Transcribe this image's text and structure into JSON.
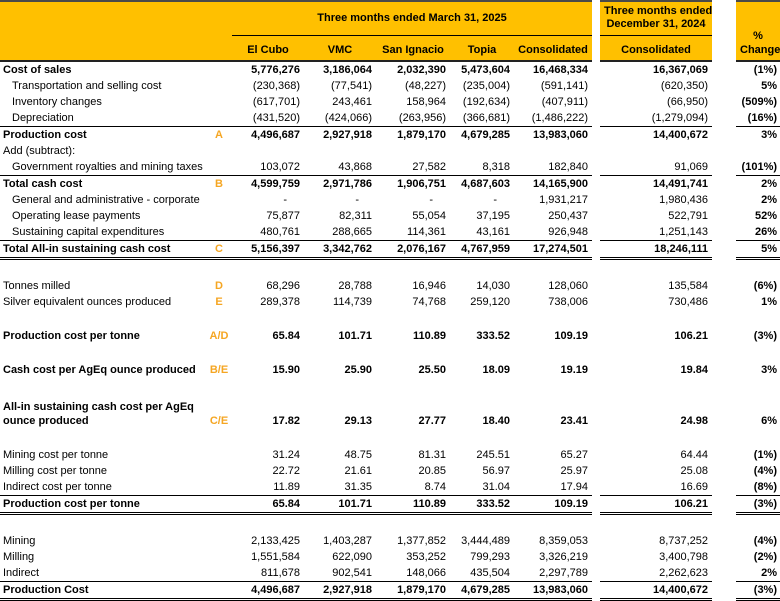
{
  "colors": {
    "header_background": "#FFC000",
    "reference_letter": "#F5A623",
    "text": "#000000",
    "rule_lines": "#000000"
  },
  "header": {
    "group_2025": "Three months ended March 31, 2025",
    "group_2024_line1": "Three months ended",
    "group_2024_line2": "December 31, 2024",
    "columns_2025": [
      "El Cubo",
      "VMC",
      "San Ignacio",
      "Topia",
      "Consolidated"
    ],
    "column_2024": "Consolidated",
    "pct_line1": "%",
    "pct_line2": "Change"
  },
  "rows": [
    {
      "label": "Cost of sales",
      "ref": "",
      "indent": false,
      "bold": true,
      "top": false,
      "dbl": false,
      "tall": false,
      "v25": [
        "5,776,276",
        "3,186,064",
        "2,032,390",
        "5,473,604",
        "16,468,334"
      ],
      "v24": "16,367,069",
      "pct": "(1%)"
    },
    {
      "label": "Transportation and selling cost",
      "ref": "",
      "indent": true,
      "bold": false,
      "top": false,
      "dbl": false,
      "tall": false,
      "v25": [
        "(230,368)",
        "(77,541)",
        "(48,227)",
        "(235,004)",
        "(591,141)"
      ],
      "v24": "(620,350)",
      "pct": "5%"
    },
    {
      "label": "Inventory changes",
      "ref": "",
      "indent": true,
      "bold": false,
      "top": false,
      "dbl": false,
      "tall": false,
      "v25": [
        "(617,701)",
        "243,461",
        "158,964",
        "(192,634)",
        "(407,911)"
      ],
      "v24": "(66,950)",
      "pct": "(509%)"
    },
    {
      "label": "Depreciation",
      "ref": "",
      "indent": true,
      "bold": false,
      "top": false,
      "dbl": false,
      "tall": false,
      "v25": [
        "(431,520)",
        "(424,066)",
        "(263,956)",
        "(366,681)",
        "(1,486,222)"
      ],
      "v24": "(1,279,094)",
      "pct": "(16%)"
    },
    {
      "label": "Production cost",
      "ref": "A",
      "indent": false,
      "bold": true,
      "top": true,
      "dbl": false,
      "tall": false,
      "v25": [
        "4,496,687",
        "2,927,918",
        "1,879,170",
        "4,679,285",
        "13,983,060"
      ],
      "v24": "14,400,672",
      "pct": "3%"
    },
    {
      "label": "Add (subtract):",
      "ref": "",
      "indent": false,
      "bold": false,
      "top": false,
      "dbl": false,
      "tall": false,
      "v25": [
        "",
        "",
        "",
        "",
        ""
      ],
      "v24": "",
      "pct": ""
    },
    {
      "label": "Government royalties and mining taxes",
      "ref": "",
      "indent": true,
      "bold": false,
      "top": false,
      "dbl": false,
      "tall": false,
      "v25": [
        "103,072",
        "43,868",
        "27,582",
        "8,318",
        "182,840"
      ],
      "v24": "91,069",
      "pct": "(101%)"
    },
    {
      "label": "Total cash cost",
      "ref": "B",
      "indent": false,
      "bold": true,
      "top": true,
      "dbl": false,
      "tall": false,
      "v25": [
        "4,599,759",
        "2,971,786",
        "1,906,751",
        "4,687,603",
        "14,165,900"
      ],
      "v24": "14,491,741",
      "pct": "2%"
    },
    {
      "label": "General and administrative - corporate",
      "ref": "",
      "indent": true,
      "bold": false,
      "top": false,
      "dbl": false,
      "tall": false,
      "v25": [
        "-",
        "-",
        "-",
        "-",
        "1,931,217"
      ],
      "v24": "1,980,436",
      "pct": "2%"
    },
    {
      "label": "Operating lease payments",
      "ref": "",
      "indent": true,
      "bold": false,
      "top": false,
      "dbl": false,
      "tall": false,
      "v25": [
        "75,877",
        "82,311",
        "55,054",
        "37,195",
        "250,437"
      ],
      "v24": "522,791",
      "pct": "52%"
    },
    {
      "label": "Sustaining capital expenditures",
      "ref": "",
      "indent": true,
      "bold": false,
      "top": false,
      "dbl": false,
      "tall": false,
      "v25": [
        "480,761",
        "288,665",
        "114,361",
        "43,161",
        "926,948"
      ],
      "v24": "1,251,143",
      "pct": "26%"
    },
    {
      "label": "Total All-in sustaining cash cost",
      "ref": "C",
      "indent": false,
      "bold": true,
      "top": true,
      "dbl": true,
      "tall": false,
      "v25": [
        "5,156,397",
        "3,342,762",
        "2,076,167",
        "4,767,959",
        "17,274,501"
      ],
      "v24": "18,246,111",
      "pct": "5%"
    },
    {
      "blank": true
    },
    {
      "label": "Tonnes milled",
      "ref": "D",
      "indent": false,
      "bold": false,
      "top": false,
      "dbl": false,
      "tall": false,
      "v25": [
        "68,296",
        "28,788",
        "16,946",
        "14,030",
        "128,060"
      ],
      "v24": "135,584",
      "pct": "(6%)"
    },
    {
      "label": "Silver equivalent ounces produced",
      "ref": "E",
      "indent": false,
      "bold": false,
      "top": false,
      "dbl": false,
      "tall": false,
      "v25": [
        "289,378",
        "114,739",
        "74,768",
        "259,120",
        "738,006"
      ],
      "v24": "730,486",
      "pct": "1%"
    },
    {
      "blank": true
    },
    {
      "label": "Production cost per tonne",
      "ref": "A/D",
      "indent": false,
      "bold": true,
      "top": false,
      "dbl": false,
      "tall": false,
      "v25": [
        "65.84",
        "101.71",
        "110.89",
        "333.52",
        "109.19"
      ],
      "v24": "106.21",
      "pct": "(3%)"
    },
    {
      "blank": true
    },
    {
      "label": "Cash cost per AgEq ounce produced",
      "ref": "B/E",
      "indent": false,
      "bold": true,
      "top": false,
      "dbl": false,
      "tall": false,
      "v25": [
        "15.90",
        "25.90",
        "25.50",
        "18.09",
        "19.19"
      ],
      "v24": "19.84",
      "pct": "3%"
    },
    {
      "blank": true
    },
    {
      "label": "All-in sustaining cash cost per AgEq ounce produced",
      "ref": "C/E",
      "indent": false,
      "bold": true,
      "top": false,
      "dbl": false,
      "tall": true,
      "v25": [
        "17.82",
        "29.13",
        "27.77",
        "18.40",
        "23.41"
      ],
      "v24": "24.98",
      "pct": "6%"
    },
    {
      "blank": true
    },
    {
      "label": "Mining cost per tonne",
      "ref": "",
      "indent": false,
      "bold": false,
      "top": false,
      "dbl": false,
      "tall": false,
      "v25": [
        "31.24",
        "48.75",
        "81.31",
        "245.51",
        "65.27"
      ],
      "v24": "64.44",
      "pct": "(1%)"
    },
    {
      "label": "Milling cost per tonne",
      "ref": "",
      "indent": false,
      "bold": false,
      "top": false,
      "dbl": false,
      "tall": false,
      "v25": [
        "22.72",
        "21.61",
        "20.85",
        "56.97",
        "25.97"
      ],
      "v24": "25.08",
      "pct": "(4%)"
    },
    {
      "label": "Indirect cost per tonne",
      "ref": "",
      "indent": false,
      "bold": false,
      "top": false,
      "dbl": false,
      "tall": false,
      "v25": [
        "11.89",
        "31.35",
        "8.74",
        "31.04",
        "17.94"
      ],
      "v24": "16.69",
      "pct": "(8%)"
    },
    {
      "label": "Production cost per tonne",
      "ref": "",
      "indent": false,
      "bold": true,
      "top": true,
      "dbl": true,
      "tall": false,
      "v25": [
        "65.84",
        "101.71",
        "110.89",
        "333.52",
        "109.19"
      ],
      "v24": "106.21",
      "pct": "(3%)"
    },
    {
      "blank": true
    },
    {
      "label": "Mining",
      "ref": "",
      "indent": false,
      "bold": false,
      "top": false,
      "dbl": false,
      "tall": false,
      "v25": [
        "2,133,425",
        "1,403,287",
        "1,377,852",
        "3,444,489",
        "8,359,053"
      ],
      "v24": "8,737,252",
      "pct": "(4%)"
    },
    {
      "label": "Milling",
      "ref": "",
      "indent": false,
      "bold": false,
      "top": false,
      "dbl": false,
      "tall": false,
      "v25": [
        "1,551,584",
        "622,090",
        "353,252",
        "799,293",
        "3,326,219"
      ],
      "v24": "3,400,798",
      "pct": "(2%)"
    },
    {
      "label": "Indirect",
      "ref": "",
      "indent": false,
      "bold": false,
      "top": false,
      "dbl": false,
      "tall": false,
      "v25": [
        "811,678",
        "902,541",
        "148,066",
        "435,504",
        "2,297,789"
      ],
      "v24": "2,262,623",
      "pct": "2%"
    },
    {
      "label": "Production Cost",
      "ref": "",
      "indent": false,
      "bold": true,
      "top": true,
      "dbl": true,
      "tall": false,
      "v25": [
        "4,496,687",
        "2,927,918",
        "1,879,170",
        "4,679,285",
        "13,983,060"
      ],
      "v24": "14,400,672",
      "pct": "(3%)"
    }
  ]
}
